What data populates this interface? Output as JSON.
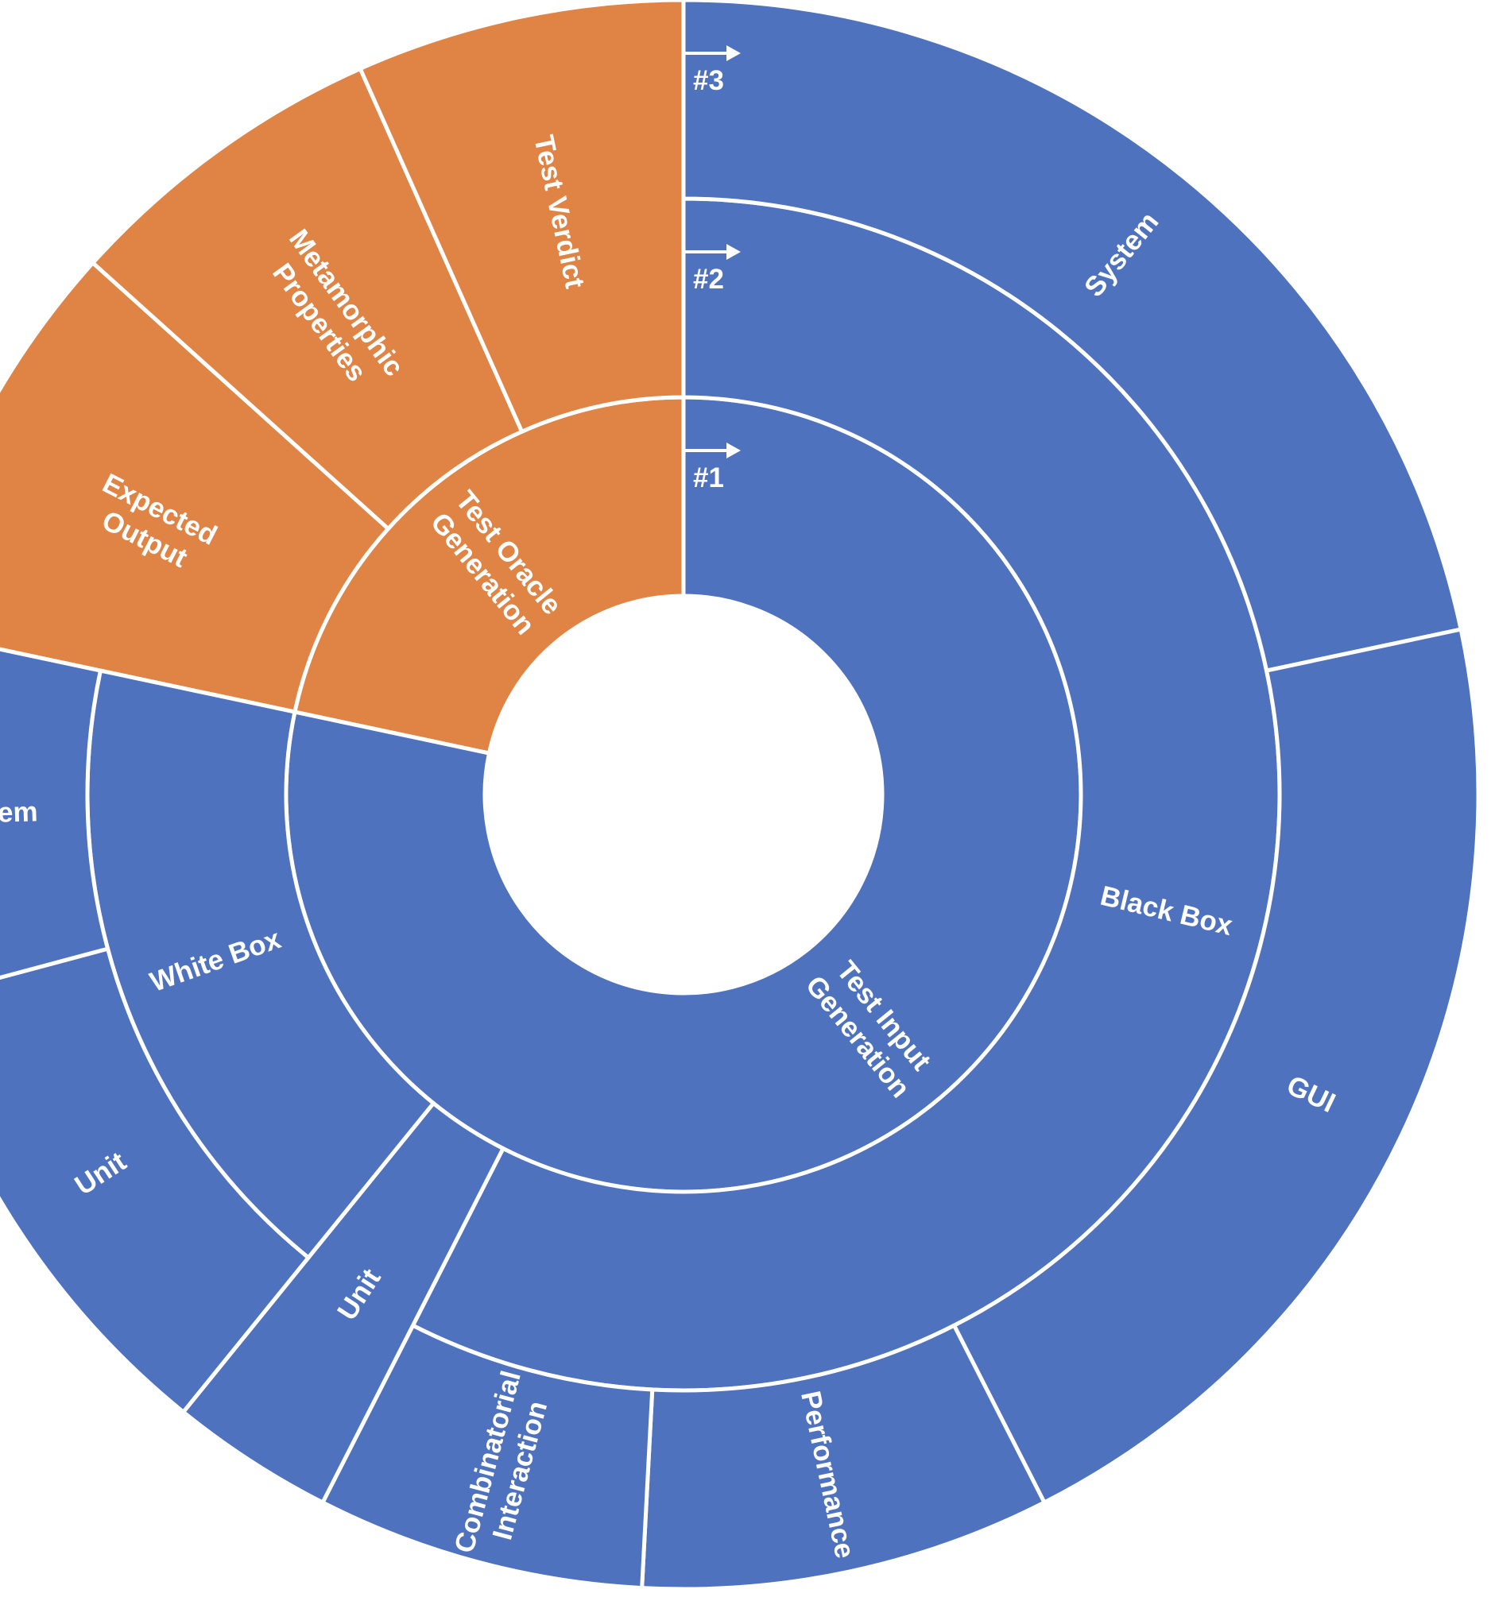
{
  "chart_data": {
    "type": "sunburst",
    "title": "",
    "colors": {
      "Test Oracle Generation": "#df8445",
      "Test Input Generation": "#4e72bd",
      "divider": "#ffffff"
    },
    "level_markers": [
      "#1",
      "#2",
      "#3"
    ],
    "hierarchy": [
      {
        "name": "Test Oracle Generation",
        "children": [
          {
            "name": "Expected Output",
            "value": 10
          },
          {
            "name": "Metamorphic Properties",
            "value": 8
          },
          {
            "name": "Test Verdict",
            "value": 8
          }
        ]
      },
      {
        "name": "Test Input Generation",
        "children": [
          {
            "name": "Black Box",
            "children": [
              {
                "name": "System",
                "value": 26
              },
              {
                "name": "GUI",
                "value": 25
              },
              {
                "name": "Performance",
                "value": 10
              },
              {
                "name": "Combinatorial Interaction",
                "value": 8
              }
            ]
          },
          {
            "name": "Unit",
            "value": 4
          },
          {
            "name": "White Box",
            "children": [
              {
                "name": "Unit",
                "value": 12
              },
              {
                "name": "System",
                "value": 9
              }
            ]
          }
        ]
      }
    ]
  }
}
